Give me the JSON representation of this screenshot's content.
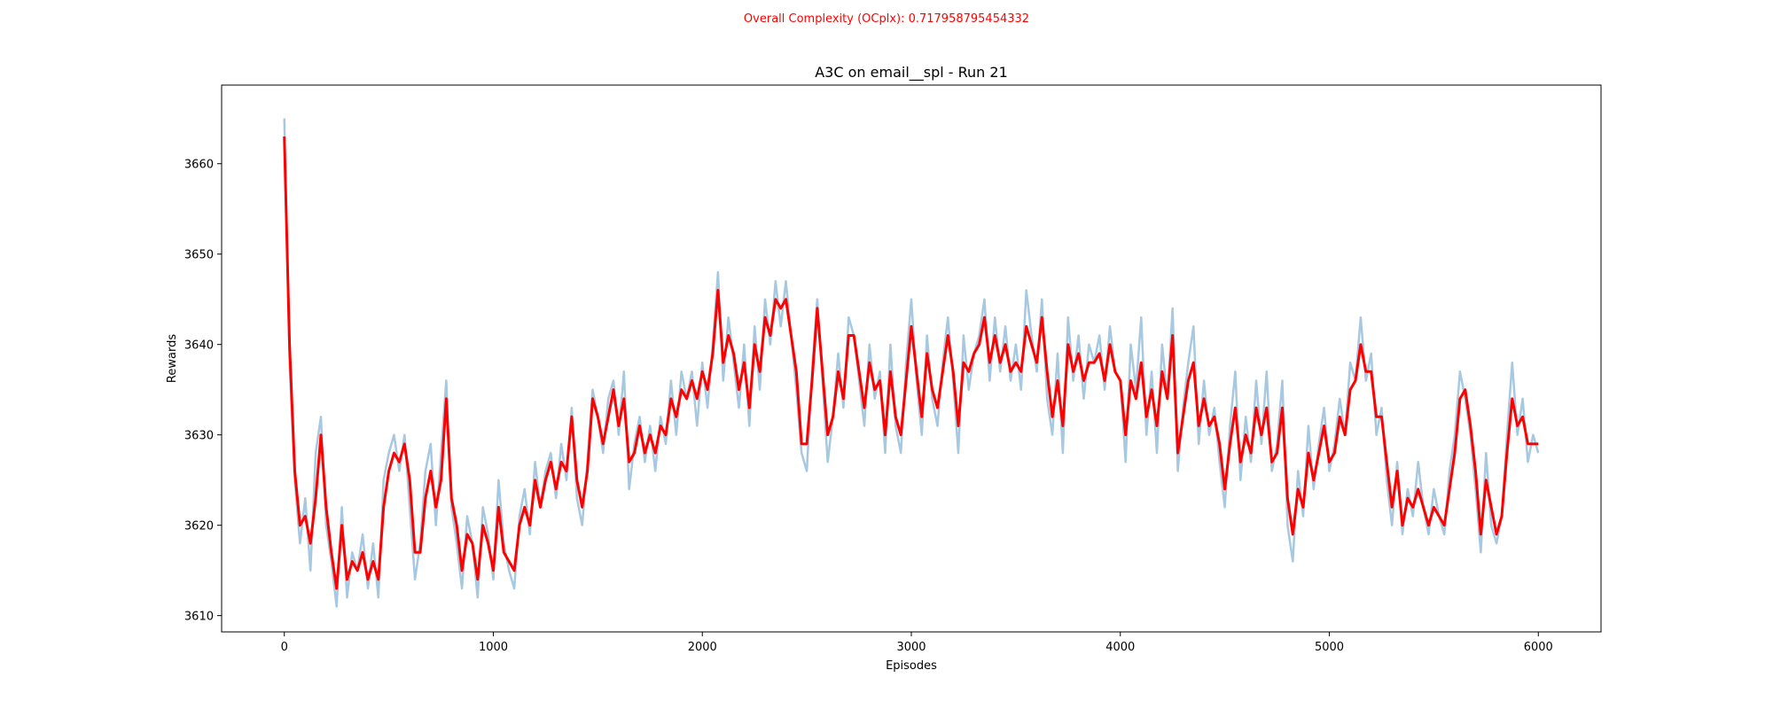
{
  "suptitle": "Overall Complexity (OCplx): 0.717958795454332",
  "chart_data": {
    "type": "line",
    "title": "A3C on email__spl - Run 21",
    "xlabel": "Episodes",
    "ylabel": "Rewards",
    "xlim": [
      -300,
      6300
    ],
    "ylim": [
      3608.2,
      3668.7
    ],
    "xticks": [
      0,
      1000,
      2000,
      3000,
      4000,
      5000,
      6000
    ],
    "yticks": [
      3610,
      3620,
      3630,
      3640,
      3650,
      3660
    ],
    "grid": false,
    "colors": {
      "raw": "#a6c8e0",
      "smoothed": "#ff0000",
      "suptitle": "#ff0000"
    },
    "series": [
      {
        "role": "raw",
        "x": [
          0,
          25,
          50,
          75,
          100,
          125,
          150,
          175,
          200,
          225,
          250,
          275,
          300,
          325,
          350,
          375,
          400,
          425,
          450,
          475,
          500,
          525,
          550,
          575,
          600,
          625,
          650,
          675,
          700,
          725,
          750,
          775,
          800,
          825,
          850,
          875,
          900,
          925,
          950,
          975,
          1000,
          1025,
          1050,
          1075,
          1100,
          1125,
          1150,
          1175,
          1200,
          1225,
          1250,
          1275,
          1300,
          1325,
          1350,
          1375,
          1400,
          1425,
          1450,
          1475,
          1500,
          1525,
          1550,
          1575,
          1600,
          1625,
          1650,
          1675,
          1700,
          1725,
          1750,
          1775,
          1800,
          1825,
          1850,
          1875,
          1900,
          1925,
          1950,
          1975,
          2000,
          2025,
          2050,
          2075,
          2100,
          2125,
          2150,
          2175,
          2200,
          2225,
          2250,
          2275,
          2300,
          2325,
          2350,
          2375,
          2400,
          2425,
          2450,
          2475,
          2500,
          2525,
          2550,
          2575,
          2600,
          2625,
          2650,
          2675,
          2700,
          2725,
          2750,
          2775,
          2800,
          2825,
          2850,
          2875,
          2900,
          2925,
          2950,
          2975,
          3000,
          3025,
          3050,
          3075,
          3100,
          3125,
          3150,
          3175,
          3200,
          3225,
          3250,
          3275,
          3300,
          3325,
          3350,
          3375,
          3400,
          3425,
          3450,
          3475,
          3500,
          3525,
          3550,
          3575,
          3600,
          3625,
          3650,
          3675,
          3700,
          3725,
          3750,
          3775,
          3800,
          3825,
          3850,
          3875,
          3900,
          3925,
          3950,
          3975,
          4000,
          4025,
          4050,
          4075,
          4100,
          4125,
          4150,
          4175,
          4200,
          4225,
          4250,
          4275,
          4300,
          4325,
          4350,
          4375,
          4400,
          4425,
          4450,
          4475,
          4500,
          4525,
          4550,
          4575,
          4600,
          4625,
          4650,
          4675,
          4700,
          4725,
          4750,
          4775,
          4800,
          4825,
          4850,
          4875,
          4900,
          4925,
          4950,
          4975,
          5000,
          5025,
          5050,
          5075,
          5100,
          5125,
          5150,
          5175,
          5200,
          5225,
          5250,
          5275,
          5300,
          5325,
          5350,
          5375,
          5400,
          5425,
          5450,
          5475,
          5500,
          5525,
          5550,
          5575,
          5600,
          5625,
          5650,
          5675,
          5700,
          5725,
          5750,
          5775,
          5800,
          5825,
          5850,
          5875,
          5900,
          5925,
          5950,
          5975,
          6000
        ],
        "y": [
          3665,
          3638,
          3625,
          3618,
          3623,
          3615,
          3628,
          3632,
          3620,
          3616,
          3611,
          3622,
          3612,
          3617,
          3615,
          3619,
          3613,
          3618,
          3612,
          3625,
          3628,
          3630,
          3626,
          3630,
          3622,
          3614,
          3618,
          3626,
          3629,
          3620,
          3628,
          3636,
          3622,
          3618,
          3613,
          3621,
          3618,
          3612,
          3622,
          3619,
          3614,
          3625,
          3618,
          3615,
          3613,
          3621,
          3624,
          3619,
          3627,
          3622,
          3626,
          3628,
          3623,
          3629,
          3625,
          3633,
          3623,
          3620,
          3627,
          3635,
          3632,
          3628,
          3634,
          3636,
          3630,
          3637,
          3624,
          3629,
          3632,
          3627,
          3631,
          3626,
          3632,
          3629,
          3636,
          3630,
          3637,
          3634,
          3637,
          3631,
          3638,
          3633,
          3640,
          3648,
          3636,
          3643,
          3638,
          3633,
          3640,
          3631,
          3642,
          3635,
          3645,
          3640,
          3647,
          3642,
          3647,
          3641,
          3635,
          3628,
          3626,
          3637,
          3645,
          3636,
          3627,
          3632,
          3639,
          3633,
          3643,
          3641,
          3636,
          3631,
          3640,
          3634,
          3637,
          3628,
          3640,
          3631,
          3628,
          3638,
          3645,
          3636,
          3630,
          3641,
          3634,
          3631,
          3638,
          3643,
          3636,
          3628,
          3641,
          3635,
          3639,
          3641,
          3645,
          3636,
          3643,
          3637,
          3642,
          3636,
          3640,
          3635,
          3646,
          3641,
          3637,
          3645,
          3634,
          3630,
          3639,
          3628,
          3643,
          3636,
          3641,
          3634,
          3640,
          3638,
          3641,
          3635,
          3642,
          3637,
          3636,
          3627,
          3640,
          3635,
          3643,
          3630,
          3637,
          3628,
          3640,
          3634,
          3644,
          3626,
          3633,
          3638,
          3642,
          3629,
          3636,
          3630,
          3633,
          3627,
          3622,
          3631,
          3637,
          3625,
          3632,
          3627,
          3636,
          3629,
          3637,
          3626,
          3629,
          3636,
          3620,
          3616,
          3626,
          3621,
          3631,
          3624,
          3629,
          3633,
          3626,
          3629,
          3634,
          3630,
          3638,
          3636,
          3643,
          3636,
          3639,
          3630,
          3633,
          3625,
          3620,
          3627,
          3619,
          3624,
          3621,
          3627,
          3622,
          3619,
          3624,
          3621,
          3619,
          3626,
          3630,
          3637,
          3634,
          3630,
          3624,
          3617,
          3628,
          3620,
          3618,
          3621,
          3630,
          3638,
          3630,
          3634,
          3627,
          3630,
          3628
        ],
        "stroke_width": 2.5
      },
      {
        "role": "smoothed",
        "x": [
          0,
          25,
          50,
          75,
          100,
          125,
          150,
          175,
          200,
          225,
          250,
          275,
          300,
          325,
          350,
          375,
          400,
          425,
          450,
          475,
          500,
          525,
          550,
          575,
          600,
          625,
          650,
          675,
          700,
          725,
          750,
          775,
          800,
          825,
          850,
          875,
          900,
          925,
          950,
          975,
          1000,
          1025,
          1050,
          1075,
          1100,
          1125,
          1150,
          1175,
          1200,
          1225,
          1250,
          1275,
          1300,
          1325,
          1350,
          1375,
          1400,
          1425,
          1450,
          1475,
          1500,
          1525,
          1550,
          1575,
          1600,
          1625,
          1650,
          1675,
          1700,
          1725,
          1750,
          1775,
          1800,
          1825,
          1850,
          1875,
          1900,
          1925,
          1950,
          1975,
          2000,
          2025,
          2050,
          2075,
          2100,
          2125,
          2150,
          2175,
          2200,
          2225,
          2250,
          2275,
          2300,
          2325,
          2350,
          2375,
          2400,
          2425,
          2450,
          2475,
          2500,
          2525,
          2550,
          2575,
          2600,
          2625,
          2650,
          2675,
          2700,
          2725,
          2750,
          2775,
          2800,
          2825,
          2850,
          2875,
          2900,
          2925,
          2950,
          2975,
          3000,
          3025,
          3050,
          3075,
          3100,
          3125,
          3150,
          3175,
          3200,
          3225,
          3250,
          3275,
          3300,
          3325,
          3350,
          3375,
          3400,
          3425,
          3450,
          3475,
          3500,
          3525,
          3550,
          3575,
          3600,
          3625,
          3650,
          3675,
          3700,
          3725,
          3750,
          3775,
          3800,
          3825,
          3850,
          3875,
          3900,
          3925,
          3950,
          3975,
          4000,
          4025,
          4050,
          4075,
          4100,
          4125,
          4150,
          4175,
          4200,
          4225,
          4250,
          4275,
          4300,
          4325,
          4350,
          4375,
          4400,
          4425,
          4450,
          4475,
          4500,
          4525,
          4550,
          4575,
          4600,
          4625,
          4650,
          4675,
          4700,
          4725,
          4750,
          4775,
          4800,
          4825,
          4850,
          4875,
          4900,
          4925,
          4950,
          4975,
          5000,
          5025,
          5050,
          5075,
          5100,
          5125,
          5150,
          5175,
          5200,
          5225,
          5250,
          5275,
          5300,
          5325,
          5350,
          5375,
          5400,
          5425,
          5450,
          5475,
          5500,
          5525,
          5550,
          5575,
          5600,
          5625,
          5650,
          5675,
          5700,
          5725,
          5750,
          5775,
          5800,
          5825,
          5850,
          5875,
          5900,
          5925,
          5950,
          5975,
          6000
        ],
        "y": [
          3663,
          3640,
          3626,
          3620,
          3621,
          3618,
          3623,
          3630,
          3622,
          3617,
          3613,
          3620,
          3614,
          3616,
          3615,
          3617,
          3614,
          3616,
          3614,
          3622,
          3626,
          3628,
          3627,
          3629,
          3625,
          3617,
          3617,
          3623,
          3626,
          3622,
          3625,
          3634,
          3623,
          3620,
          3615,
          3619,
          3618,
          3614,
          3620,
          3618,
          3615,
          3622,
          3617,
          3616,
          3615,
          3620,
          3622,
          3620,
          3625,
          3622,
          3625,
          3627,
          3624,
          3627,
          3626,
          3632,
          3625,
          3622,
          3626,
          3634,
          3632,
          3629,
          3632,
          3635,
          3631,
          3634,
          3627,
          3628,
          3631,
          3628,
          3630,
          3628,
          3631,
          3630,
          3634,
          3632,
          3635,
          3634,
          3636,
          3634,
          3637,
          3635,
          3639,
          3646,
          3638,
          3641,
          3639,
          3635,
          3638,
          3633,
          3640,
          3637,
          3643,
          3641,
          3645,
          3644,
          3645,
          3641,
          3637,
          3629,
          3629,
          3636,
          3644,
          3637,
          3630,
          3632,
          3637,
          3634,
          3641,
          3641,
          3637,
          3633,
          3638,
          3635,
          3636,
          3630,
          3637,
          3632,
          3630,
          3636,
          3642,
          3637,
          3632,
          3639,
          3635,
          3633,
          3637,
          3641,
          3637,
          3631,
          3638,
          3637,
          3639,
          3640,
          3643,
          3638,
          3641,
          3638,
          3640,
          3637,
          3638,
          3637,
          3642,
          3640,
          3638,
          3643,
          3637,
          3632,
          3636,
          3631,
          3640,
          3637,
          3639,
          3636,
          3638,
          3638,
          3639,
          3636,
          3640,
          3637,
          3636,
          3630,
          3636,
          3634,
          3638,
          3632,
          3635,
          3631,
          3637,
          3634,
          3641,
          3628,
          3632,
          3636,
          3638,
          3631,
          3634,
          3631,
          3632,
          3629,
          3624,
          3629,
          3633,
          3627,
          3630,
          3628,
          3633,
          3630,
          3633,
          3627,
          3628,
          3633,
          3623,
          3619,
          3624,
          3622,
          3628,
          3625,
          3628,
          3631,
          3627,
          3628,
          3632,
          3630,
          3635,
          3636,
          3640,
          3637,
          3637,
          3632,
          3632,
          3627,
          3622,
          3626,
          3620,
          3623,
          3622,
          3624,
          3622,
          3620,
          3622,
          3621,
          3620,
          3624,
          3628,
          3634,
          3635,
          3631,
          3626,
          3619,
          3625,
          3622,
          3619,
          3621,
          3628,
          3634,
          3631,
          3632,
          3629,
          3629,
          3629
        ],
        "stroke_width": 3
      }
    ]
  }
}
